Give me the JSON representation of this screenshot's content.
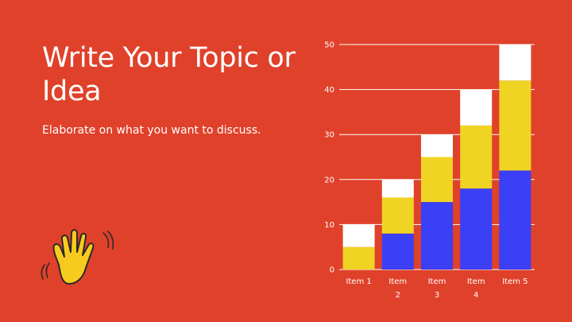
{
  "colors": {
    "background": "#E0412A",
    "series": [
      "#3B3FF5",
      "#F0D424",
      "#FFFFFF"
    ],
    "hand": "#F7CB1E",
    "hand_outline": "#2A2A2A",
    "axis_line": "#FFFFFF"
  },
  "slide": {
    "title": "Write Your Topic or Idea",
    "subtitle": "Elaborate on what you want to discuss."
  },
  "icons": {
    "decoration": "waving-hand-icon"
  },
  "chart_data": {
    "type": "bar",
    "stacked": true,
    "categories": [
      "Item 1",
      "Item 2",
      "Item 3",
      "Item 4",
      "Item 5"
    ],
    "category_lines": [
      [
        "Item 1"
      ],
      [
        "Item",
        "2"
      ],
      [
        "Item",
        "3"
      ],
      [
        "Item",
        "4"
      ],
      [
        "Item 5"
      ]
    ],
    "series": [
      {
        "values": [
          0,
          8,
          15,
          18,
          22
        ]
      },
      {
        "values": [
          5,
          8,
          10,
          14,
          20
        ]
      },
      {
        "values": [
          5,
          4,
          5,
          8,
          8
        ]
      }
    ],
    "ylim": [
      0,
      50
    ],
    "yticks": [
      0,
      10,
      20,
      30,
      40,
      50
    ],
    "grid": true,
    "legend": "none",
    "title": "",
    "xlabel": "",
    "ylabel": ""
  }
}
